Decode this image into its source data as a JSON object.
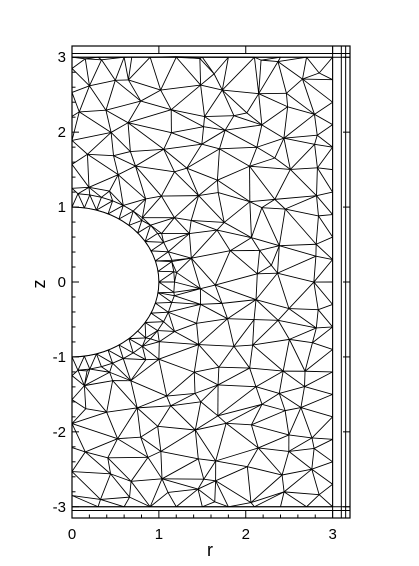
{
  "chart_data": {
    "type": "mesh",
    "title": "",
    "xlabel": "r",
    "ylabel": "z",
    "xlim": [
      0,
      3.2
    ],
    "ylim": [
      -3.15,
      3.15
    ],
    "x_ticks": [
      0,
      1,
      2,
      3
    ],
    "y_ticks": [
      -3,
      -2,
      -1,
      0,
      1,
      2,
      3
    ],
    "x_tick_labels": [
      "0",
      "1",
      "2",
      "3"
    ],
    "y_tick_labels": [
      "-3",
      "-2",
      "-1",
      "0",
      "1",
      "2",
      "3"
    ],
    "obstacle": {
      "shape": "half-circle",
      "center": [
        0,
        0
      ],
      "radius": 1
    },
    "far_field_columns_r": [
      3.0,
      3.1,
      3.15
    ],
    "far_field_rows_z": [
      -3.15,
      -3.05,
      -3.0,
      3.0,
      3.05,
      3.15
    ],
    "grid": false,
    "legend": "none",
    "colors": {
      "mesh": "#000000",
      "background": "#ffffff"
    }
  }
}
